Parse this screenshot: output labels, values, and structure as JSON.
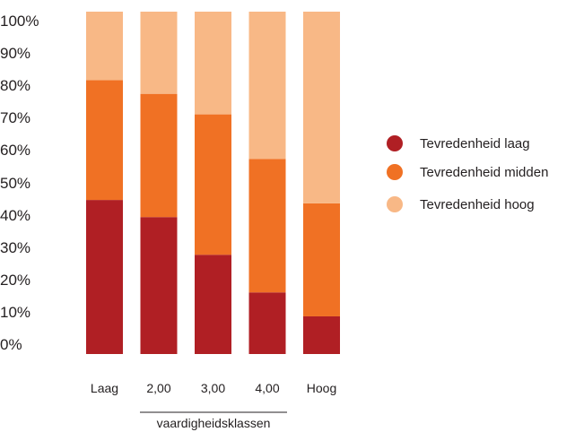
{
  "chart_data": {
    "type": "bar",
    "stacked": true,
    "normalized_100": true,
    "categories": [
      "Laag",
      "2,00",
      "3,00",
      "4,00",
      "Hoog"
    ],
    "series": [
      {
        "name": "Tevredenheid laag",
        "color": "#b01f24",
        "values": [
          45,
          40,
          29,
          18,
          11
        ]
      },
      {
        "name": "Tevredenheid midden",
        "color": "#f07124",
        "values": [
          35,
          36,
          41,
          39,
          33
        ]
      },
      {
        "name": "Tevredenheid hoog",
        "color": "#f8b886",
        "values": [
          20,
          24,
          30,
          43,
          56
        ]
      }
    ],
    "y_ticks": [
      "0%",
      "10%",
      "20%",
      "30%",
      "40%",
      "50%",
      "60%",
      "70%",
      "80%",
      "90%",
      "100%"
    ],
    "ylim": [
      0,
      100
    ],
    "xlabel": "vaardigheidsklassen",
    "ylabel": "",
    "legend_position": "right",
    "grid": false
  }
}
